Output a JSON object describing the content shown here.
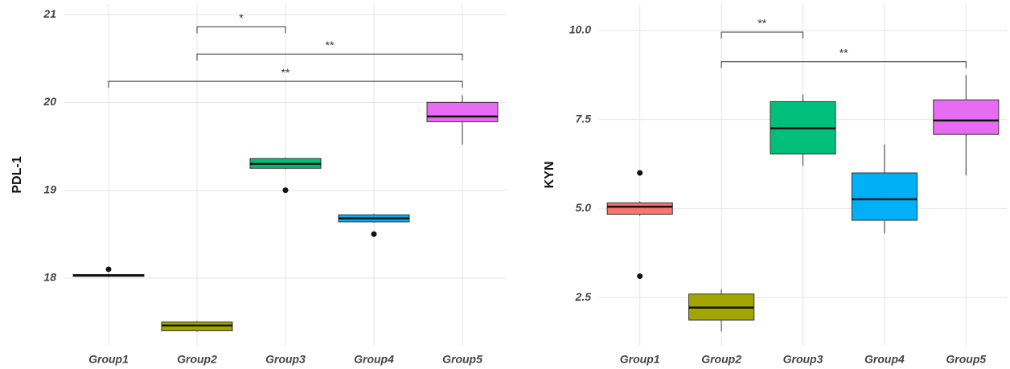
{
  "chart_data": [
    {
      "type": "box",
      "ylabel": "PDL-1",
      "categories": [
        "Group1",
        "Group2",
        "Group3",
        "Group4",
        "Group5"
      ],
      "colors": [
        "#F8766D",
        "#A3A500",
        "#00BF7D",
        "#00B0F6",
        "#E76BF3"
      ],
      "boxes": [
        {
          "min": 18.01,
          "q1": 18.02,
          "median": 18.03,
          "q3": 18.04,
          "max": 18.05,
          "outliers": [
            18.1
          ]
        },
        {
          "min": 17.39,
          "q1": 17.4,
          "median": 17.46,
          "q3": 17.5,
          "max": 17.51,
          "outliers": []
        },
        {
          "min": 19.24,
          "q1": 19.25,
          "median": 19.3,
          "q3": 19.36,
          "max": 19.37,
          "outliers": [
            19.0
          ]
        },
        {
          "min": 18.63,
          "q1": 18.64,
          "median": 18.68,
          "q3": 18.72,
          "max": 18.73,
          "outliers": [
            18.5
          ]
        },
        {
          "min": 19.52,
          "q1": 19.78,
          "median": 19.84,
          "q3": 20.0,
          "max": 20.08,
          "outliers": []
        }
      ],
      "significance": [
        {
          "between": [
            "Group2",
            "Group3"
          ],
          "label": "*",
          "value": 20.86
        },
        {
          "between": [
            "Group2",
            "Group5"
          ],
          "label": "**",
          "value": 20.55
        },
        {
          "between": [
            "Group1",
            "Group5"
          ],
          "label": "**",
          "value": 20.24
        }
      ],
      "ylim": [
        17.23,
        21.12
      ],
      "yticks": [
        18,
        19,
        20,
        21
      ],
      "grid": true
    },
    {
      "type": "box",
      "ylabel": "KYN",
      "categories": [
        "Group1",
        "Group2",
        "Group3",
        "Group4",
        "Group5"
      ],
      "colors": [
        "#F8766D",
        "#A3A500",
        "#00BF7D",
        "#00B0F6",
        "#E76BF3"
      ],
      "boxes": [
        {
          "min": 4.8,
          "q1": 4.84,
          "median": 5.05,
          "q3": 5.16,
          "max": 5.2,
          "outliers": [
            6.0,
            3.1
          ]
        },
        {
          "min": 1.55,
          "q1": 1.87,
          "median": 2.22,
          "q3": 2.6,
          "max": 2.73,
          "outliers": []
        },
        {
          "min": 6.2,
          "q1": 6.53,
          "median": 7.25,
          "q3": 8.0,
          "max": 8.2,
          "outliers": []
        },
        {
          "min": 4.3,
          "q1": 4.67,
          "median": 5.26,
          "q3": 6.0,
          "max": 6.8,
          "outliers": []
        },
        {
          "min": 5.93,
          "q1": 7.08,
          "median": 7.47,
          "q3": 8.05,
          "max": 8.74,
          "outliers": []
        }
      ],
      "significance": [
        {
          "between": [
            "Group2",
            "Group3"
          ],
          "label": "**",
          "value": 9.95
        },
        {
          "between": [
            "Group2",
            "Group5"
          ],
          "label": "**",
          "value": 9.12
        }
      ],
      "ylim": [
        1.15,
        10.74
      ],
      "yticks": [
        2.5,
        {
          "value": 5,
          "label": "5.0"
        },
        7.5,
        {
          "value": 10,
          "label": "10.0"
        }
      ],
      "grid": true
    }
  ]
}
